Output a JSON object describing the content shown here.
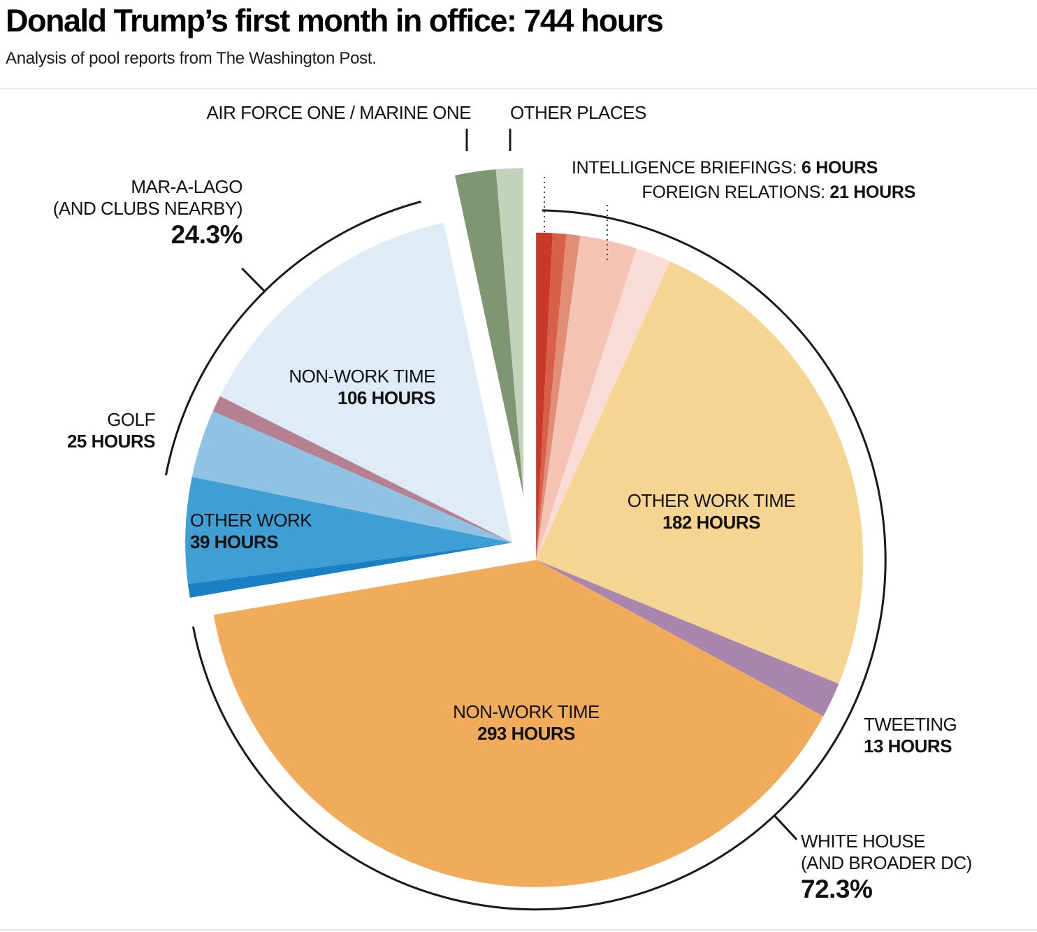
{
  "header": {
    "title": "Donald Trump’s first month in office: 744 hours",
    "subtitle": "Analysis of pool reports from The Washington Post."
  },
  "chart_data": {
    "type": "pie",
    "title": "Donald Trump’s first month in office: 744 hours",
    "total_hours": 744,
    "unit": "hours",
    "start_angle_deg": 0,
    "direction": "clockwise",
    "groups": [
      {
        "id": "white-house",
        "label": "WHITE HOUSE (AND BROADER DC)",
        "percent": "72.3%",
        "total_hours": 538,
        "segments": [
          {
            "label": "INTELLIGENCE BRIEFINGS",
            "hours": 6,
            "color": "#ca3927"
          },
          {
            "label": "",
            "hours": 5,
            "color": "#d8604b"
          },
          {
            "label": "",
            "hours": 5,
            "color": "#e28e76"
          },
          {
            "label": "FOREIGN RELATIONS",
            "hours": 21,
            "color": "#f4c3b4"
          },
          {
            "label": "",
            "hours": 13,
            "color": "#fadcd6"
          },
          {
            "label": "OTHER WORK TIME",
            "hours": 182,
            "color": "#f6d492"
          },
          {
            "label": "TWEETING",
            "hours": 13,
            "color": "#a886ad"
          },
          {
            "label": "NON-WORK TIME",
            "hours": 293,
            "color": "#f0ac5b"
          }
        ]
      },
      {
        "id": "mar-a-lago",
        "label": "MAR-A-LAGO (AND CLUBS NEARBY)",
        "percent": "24.3%",
        "total_hours": 181,
        "segments": [
          {
            "label": "",
            "hours": 5,
            "color": "#1a80c4"
          },
          {
            "label": "OTHER WORK",
            "hours": 39,
            "color": "#3f9fd4"
          },
          {
            "label": "GOLF",
            "hours": 25,
            "color": "#8fc2e3"
          },
          {
            "label": "",
            "hours": 6,
            "color": "#b5808f"
          },
          {
            "label": "NON-WORK TIME",
            "hours": 106,
            "color": "#dfebf7"
          }
        ]
      },
      {
        "id": "in-transit",
        "label": "AIR FORCE ONE / MARINE ONE + OTHER PLACES",
        "total_hours": 25,
        "segments": [
          {
            "label": "AIR FORCE ONE / MARINE ONE",
            "hours": 15,
            "color": "#7e9672"
          },
          {
            "label": "OTHER PLACES",
            "hours": 10,
            "color": "#c3d2ba"
          }
        ]
      }
    ]
  },
  "callouts": {
    "air_force_one": {
      "text": "AIR FORCE ONE / MARINE ONE"
    },
    "other_places": {
      "text": "OTHER PLACES"
    },
    "intelligence": {
      "prefix": "INTELLIGENCE BRIEFINGS: ",
      "value": "6 HOURS"
    },
    "foreign": {
      "prefix": "FOREIGN RELATIONS: ",
      "value": "21 HOURS"
    },
    "mar_a_lago": {
      "line1": "MAR-A-LAGO",
      "line2": "(AND CLUBS NEARBY)",
      "percent": "24.3%"
    },
    "golf": {
      "line1": "GOLF",
      "line2": "25 HOURS"
    },
    "non_work_maralago": {
      "line1": "NON-WORK TIME",
      "line2": "106 HOURS"
    },
    "other_work_maralago": {
      "line1": "OTHER WORK",
      "line2": "39 HOURS"
    },
    "non_work_whitehouse": {
      "line1": "NON-WORK TIME",
      "line2": "293 HOURS"
    },
    "other_work_whitehouse": {
      "line1": "OTHER WORK TIME",
      "line2": "182 HOURS"
    },
    "tweeting": {
      "line1": "TWEETING",
      "line2": "13 HOURS"
    },
    "white_house": {
      "line1": "WHITE HOUSE",
      "line2": "(AND BROADER DC)",
      "percent": "72.3%"
    }
  }
}
